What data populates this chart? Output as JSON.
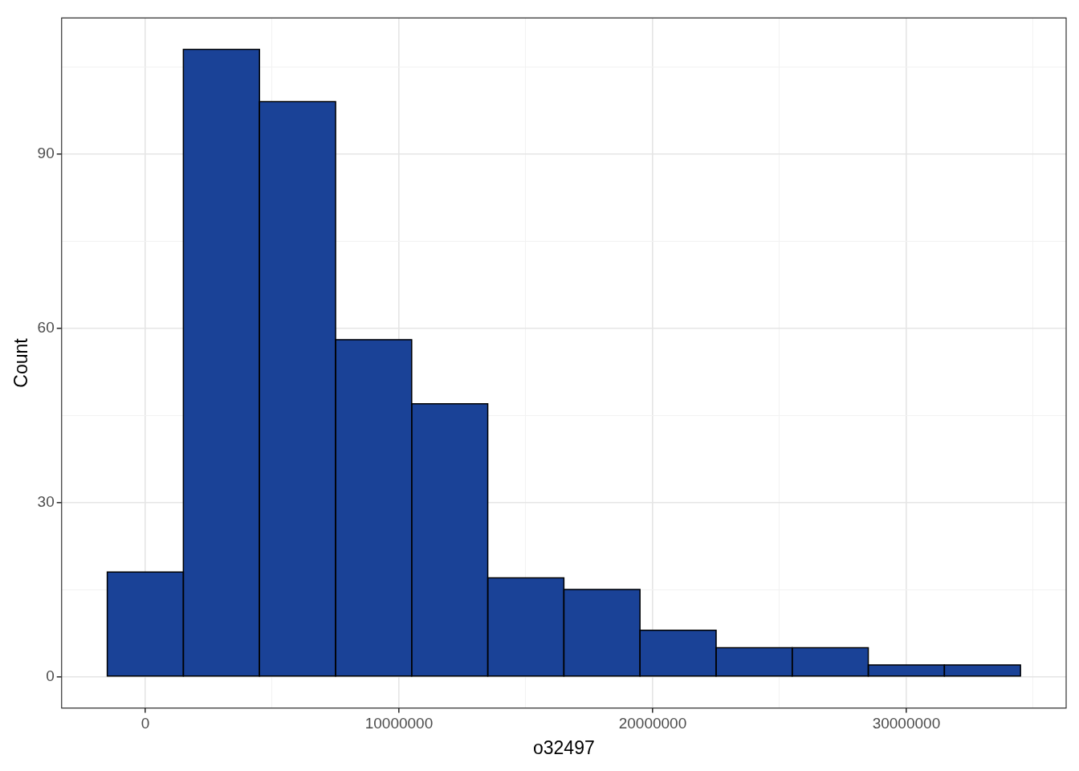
{
  "chart_data": {
    "type": "histogram",
    "xlabel": "o32497",
    "ylabel": "Count",
    "bins": [
      -1500000,
      1500000,
      4500000,
      7500000,
      10500000,
      13500000,
      16500000,
      19500000,
      22500000,
      25500000,
      28500000,
      31500000,
      34500000
    ],
    "values": [
      18,
      108,
      99,
      58,
      47,
      17,
      15,
      8,
      5,
      5,
      2,
      2
    ],
    "color": "#1a4297",
    "xlim": [
      -3300000,
      36300000
    ],
    "xticks": [
      0,
      {
        "value": 5000000,
        "label": null
      },
      10000000,
      {
        "value": 15000000,
        "label": null
      },
      20000000,
      {
        "value": 25000000,
        "label": null
      },
      30000000,
      {
        "value": 35000000,
        "label": null
      }
    ],
    "ylim": [
      -5.4,
      113.4
    ],
    "yticks": [
      0,
      {
        "value": 15,
        "label": null
      },
      30,
      {
        "value": 45,
        "label": null
      },
      60,
      {
        "value": 75,
        "label": null
      },
      90,
      {
        "value": 105,
        "label": null
      }
    ],
    "grid": true
  }
}
